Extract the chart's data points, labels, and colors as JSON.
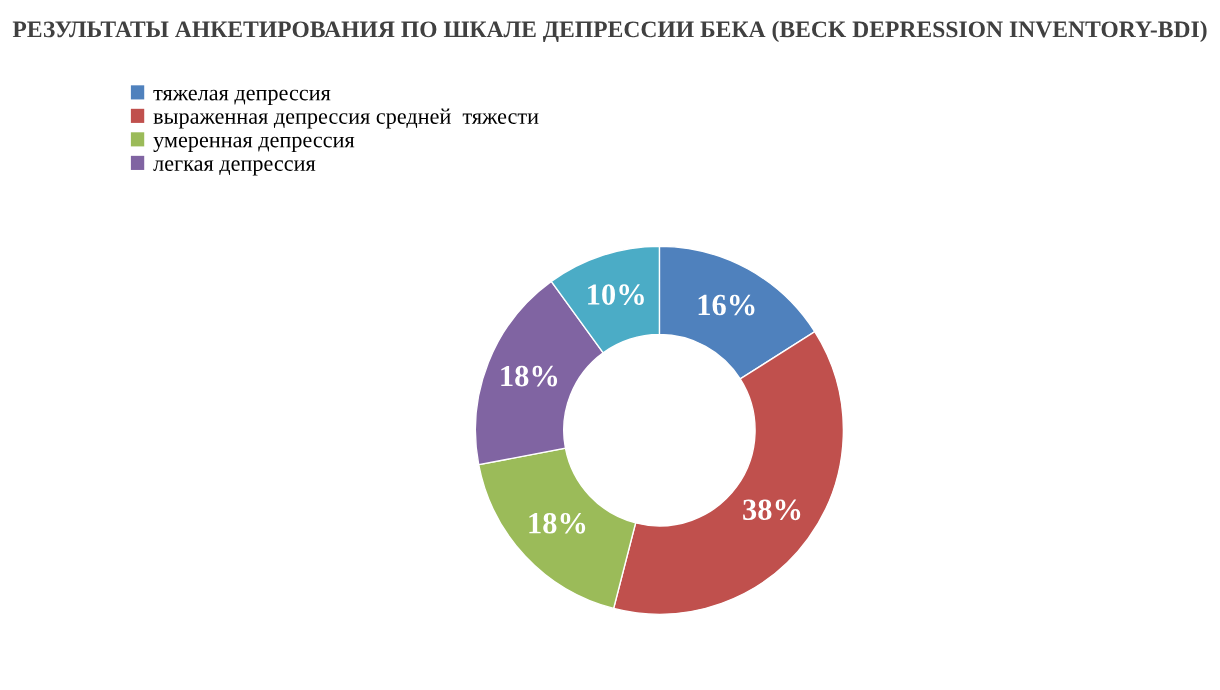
{
  "chart_data": {
    "type": "donut",
    "title": "РЕЗУЛЬТАТЫ АНКЕТИРОВАНИЯ ПО ШКАЛЕ ДЕПРЕССИИ БЕКА (BECK DEPRESSION INVENTORY-BDI)",
    "categories": [
      "тяжелая депрессия",
      "выраженная депрессия средней  тяжести",
      "умеренная депрессия",
      "легкая депрессия",
      null
    ],
    "values": [
      16,
      38,
      18,
      18,
      10
    ],
    "colors": [
      "#4f81bd",
      "#c0504d",
      "#9bbb59",
      "#8064a2",
      "#4bacc6"
    ],
    "value_labels": [
      "16%",
      "38%",
      "18%",
      "18%",
      "10%"
    ],
    "legend": "top left"
  }
}
